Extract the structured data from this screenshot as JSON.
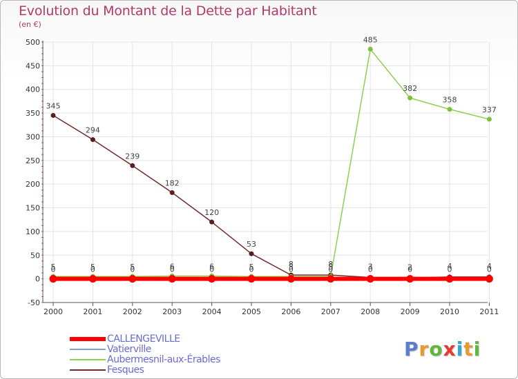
{
  "chart_data": {
    "type": "line",
    "title": "Evolution du Montant de la Dette par Habitant",
    "subtitle": "(en €)",
    "xlabel": "",
    "ylabel": "",
    "x": [
      "2000",
      "2001",
      "2002",
      "2003",
      "2004",
      "2005",
      "2006",
      "2007",
      "2008",
      "2009",
      "2010",
      "2011"
    ],
    "ylim": [
      -50,
      500
    ],
    "yticks": [
      -50,
      0,
      50,
      100,
      150,
      200,
      250,
      300,
      350,
      400,
      450,
      500
    ],
    "series": [
      {
        "name": "CALLENGEVILLE",
        "color": "#ff0000",
        "values": [
          0,
          0,
          0,
          0,
          0,
          0,
          0,
          0,
          0,
          0,
          0,
          0
        ],
        "labels": []
      },
      {
        "name": "Vatierville",
        "color": "#7fa6c8",
        "values": [
          0,
          0,
          0,
          0,
          0,
          0,
          0,
          0,
          0,
          0,
          0,
          0
        ],
        "labels": [
          "0",
          "0",
          "0",
          "0",
          "0",
          "0",
          "0",
          "0",
          "0",
          "0",
          "0",
          "0"
        ]
      },
      {
        "name": "Aubermesnil-aux-Érables",
        "color": "#8ed04e",
        "values": [
          5,
          5,
          5,
          6,
          6,
          5,
          5,
          5,
          485,
          382,
          358,
          337
        ],
        "labels": [
          "5",
          "5",
          "5",
          "6",
          "6",
          "5",
          "5",
          "5",
          "485",
          "382",
          "358",
          "337"
        ]
      },
      {
        "name": "Fesques",
        "color": "#6e2a2a",
        "values": [
          345,
          294,
          239,
          182,
          120,
          53,
          8,
          8,
          3,
          2,
          4,
          4
        ],
        "labels": [
          "345",
          "294",
          "239",
          "182",
          "120",
          "53",
          "8",
          "8",
          "3",
          "2",
          "4",
          "4"
        ]
      }
    ]
  },
  "brand": {
    "letters": [
      {
        "ch": "P",
        "color": "#5a7ec8"
      },
      {
        "ch": "r",
        "color": "#e89a2c"
      },
      {
        "ch": "o",
        "color": "#5fb83e"
      },
      {
        "ch": "x",
        "color": "#e63a2f"
      },
      {
        "ch": "i",
        "color": "#2fa7d8"
      },
      {
        "ch": "t",
        "color": "#e89a2c"
      },
      {
        "ch": "i",
        "color": "#5fb83e"
      }
    ]
  }
}
